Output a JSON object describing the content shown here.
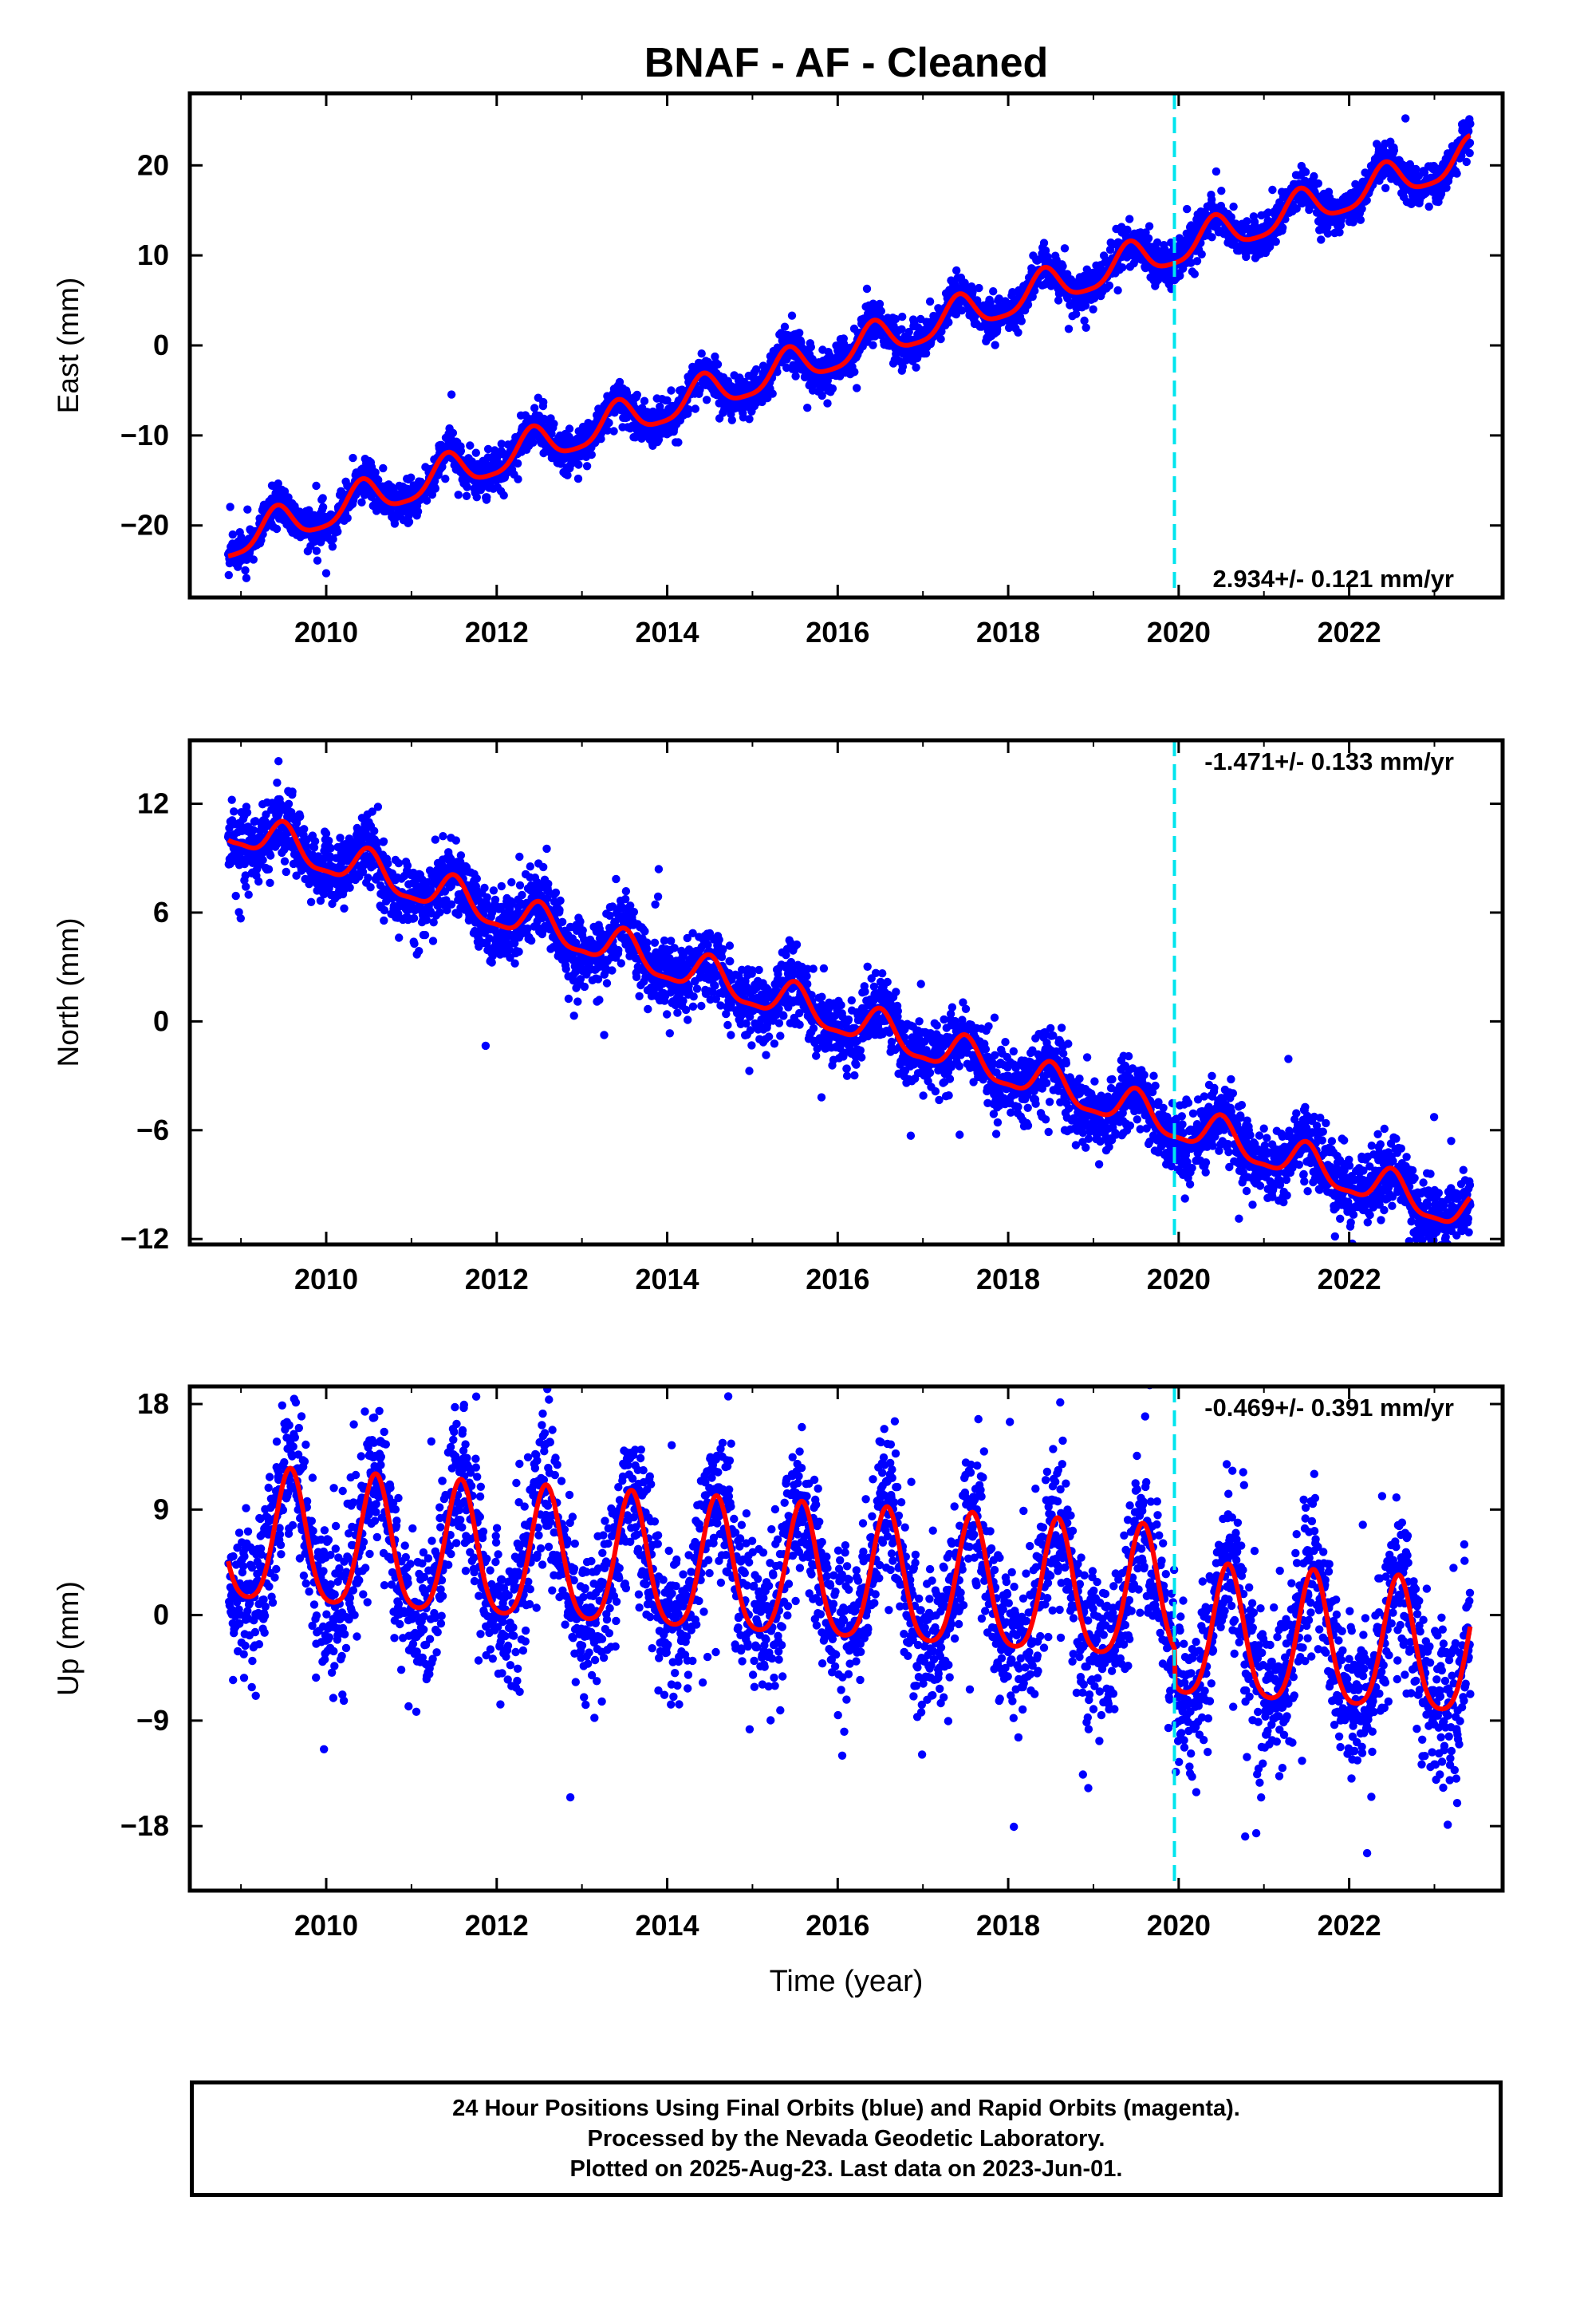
{
  "title": "BNAF  - AF - Cleaned",
  "caption": {
    "line1": "24 Hour Positions Using Final Orbits (blue) and Rapid Orbits (magenta).",
    "line2": "Processed by the Nevada Geodetic Laboratory.",
    "line3": "Plotted on 2025-Aug-23. Last data on 2023-Jun-01."
  },
  "colors": {
    "data_points": "#0000ff",
    "model_fit": "#ff0000",
    "equipment_change": "#00e5ee",
    "frame": "#000000"
  },
  "chart_data": [
    {
      "type": "scatter",
      "name": "east",
      "ylabel": "East (mm)",
      "xlabel": "",
      "xlim": [
        2008.4,
        2023.8
      ],
      "ylim": [
        -28,
        28
      ],
      "x_ticks": [
        2010,
        2012,
        2014,
        2016,
        2018,
        2020,
        2022
      ],
      "y_ticks": [
        -20,
        -10,
        0,
        10,
        20
      ],
      "rate_text": "2.934+/- 0.121 mm/yr",
      "rate_position": "bottom-right",
      "vertical_marker_x": 2019.95,
      "data_span": [
        2008.85,
        2023.42
      ],
      "fit": {
        "value_at_start": -23.4,
        "rate": 2.934,
        "annual_amplitude": 2.0,
        "annual_peak_fraction": 0.42,
        "semiannual_amplitude": 0.45
      },
      "scatter_noise": 1.1,
      "grid": false
    },
    {
      "type": "scatter",
      "name": "north",
      "ylabel": "North (mm)",
      "xlabel": "",
      "xlim": [
        2008.4,
        2023.8
      ],
      "ylim": [
        -12.3,
        15.5
      ],
      "x_ticks": [
        2010,
        2012,
        2014,
        2016,
        2018,
        2020,
        2022
      ],
      "y_ticks": [
        -12,
        -6,
        0,
        6,
        12
      ],
      "rate_text": "-1.471+/- 0.133 mm/yr",
      "rate_position": "top-right",
      "vertical_marker_x": 2019.95,
      "data_span": [
        2008.85,
        2023.42
      ],
      "fit": {
        "value_at_start": 10.0,
        "rate": -1.471,
        "annual_amplitude": 1.0,
        "annual_peak_fraction": 0.5,
        "semiannual_amplitude": 0.3
      },
      "scatter_noise": 1.0,
      "grid": false
    },
    {
      "type": "scatter",
      "name": "up",
      "ylabel": "Up (mm)",
      "xlabel": "Time (year)",
      "xlim": [
        2008.4,
        2023.8
      ],
      "ylim": [
        -23.5,
        19.5
      ],
      "x_ticks": [
        2010,
        2012,
        2014,
        2016,
        2018,
        2020,
        2022
      ],
      "y_ticks": [
        -18,
        -9,
        0,
        9,
        18
      ],
      "rate_text": "-0.469+/- 0.391 mm/yr",
      "rate_position": "top-right",
      "vertical_marker_x": 2019.95,
      "data_span": [
        2008.85,
        2023.42
      ],
      "fit": {
        "value_at_start": 4.6,
        "rate": -0.469,
        "annual_amplitude": 5.6,
        "annual_peak_fraction": 0.58,
        "semiannual_amplitude": 1.0
      },
      "offsets": [
        {
          "at": 2019.95,
          "value": -3.0
        }
      ],
      "scatter_noise": 3.3,
      "grid": false
    }
  ]
}
